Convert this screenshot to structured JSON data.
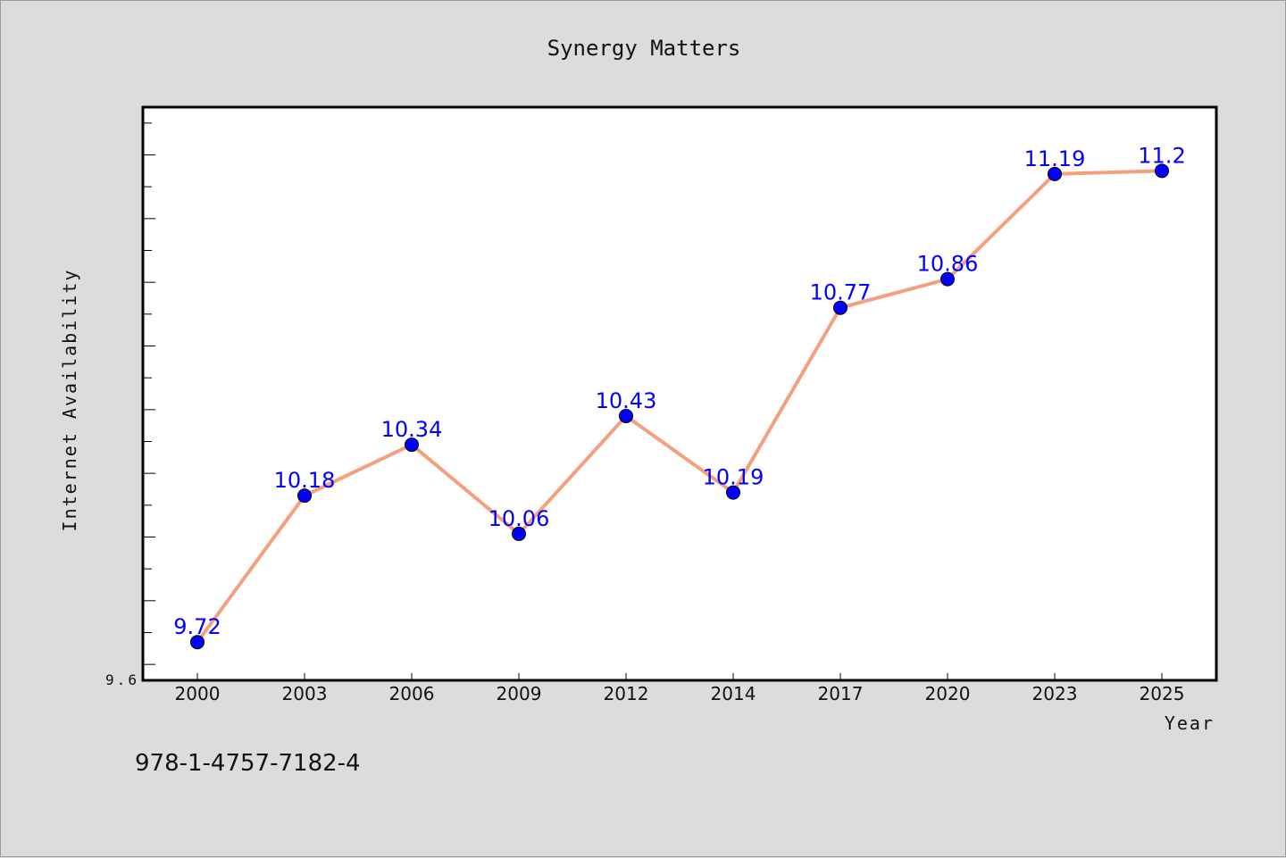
{
  "chart_data": {
    "type": "line",
    "title": "Synergy Matters",
    "xlabel": "Year",
    "ylabel": "Internet Availability",
    "ylim": [
      9.6,
      11.4
    ],
    "ymin_label": "9.6",
    "categories": [
      "2000",
      "2003",
      "2006",
      "2009",
      "2012",
      "2014",
      "2017",
      "2020",
      "2023",
      "2025"
    ],
    "series": [
      {
        "values": [
          9.72,
          10.18,
          10.34,
          10.06,
          10.43,
          10.19,
          10.77,
          10.86,
          11.19,
          11.2
        ],
        "data_labels": [
          "9.72",
          "10.18",
          "10.34",
          "10.06",
          "10.43",
          "10.19",
          "10.77",
          "10.86",
          "11.19",
          "11.2"
        ],
        "line_color": "#f4a07e",
        "marker_color": "#0000ff"
      }
    ],
    "grid": false,
    "legend": "none",
    "plot_background": "#ffffff",
    "figure_background": "#dcdcdc"
  },
  "footer": {
    "text": "978-1-4757-7182-4"
  }
}
